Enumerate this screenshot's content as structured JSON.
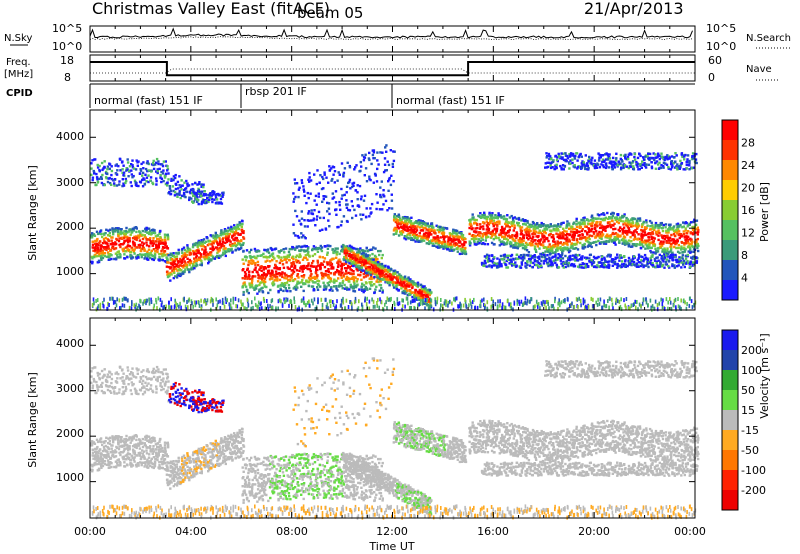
{
  "header": {
    "title": "Christmas Valley East (fitACF)",
    "beam": "beam 05",
    "date": "21/Apr/2013"
  },
  "chart_data": [
    {
      "type": "line",
      "panel": "noise",
      "left_label": "N.Sky",
      "right_label": "N.Search",
      "yticks_left": [
        "10^5",
        "10^0"
      ],
      "yticks_right": [
        "10^5",
        "10^0"
      ],
      "xlim": [
        "00:00",
        "24:00"
      ]
    },
    {
      "type": "line",
      "panel": "frequency",
      "left_label": "Freq. [MHz]",
      "right_label": "Nave",
      "yticks_left": [
        "18",
        "8"
      ],
      "yticks_right": [
        "60",
        "0"
      ],
      "series": [
        {
          "name": "Freq",
          "x_hours": [
            0,
            3.05,
            3.05,
            15.0,
            15.0,
            24
          ],
          "values": [
            15.3,
            15.3,
            10.2,
            10.2,
            15.3,
            15.3
          ]
        }
      ]
    },
    {
      "type": "table",
      "panel": "cpid",
      "label": "CPID",
      "segments": [
        {
          "start": 0,
          "end": 6.0,
          "text": "normal (fast)  151  IF"
        },
        {
          "start": 6.0,
          "end": 12.0,
          "text": "rbsp  201  IF"
        },
        {
          "start": 12.0,
          "end": 24,
          "text": "normal (fast)  151  IF"
        }
      ]
    },
    {
      "type": "heatmap",
      "panel": "power",
      "ylabel": "Slant Range [km]",
      "yticks": [
        1000,
        2000,
        3000,
        4000
      ],
      "ylim": [
        200,
        4600
      ],
      "colorbar_label": "Power [dB]",
      "colorbar_ticks": [
        "4",
        "8",
        "12",
        "16",
        "20",
        "24",
        "28"
      ]
    },
    {
      "type": "heatmap",
      "panel": "velocity",
      "ylabel": "Slant Range [km]",
      "yticks": [
        1000,
        2000,
        3000,
        4000
      ],
      "ylim": [
        200,
        4600
      ],
      "colorbar_label": "Velocity [m s^-1]",
      "colorbar_ticks": [
        "200",
        "100",
        "50",
        "15",
        "-15",
        "-50",
        "-100",
        "-200"
      ]
    }
  ],
  "xaxis": {
    "label": "Time UT",
    "ticks": [
      "00:00",
      "04:00",
      "08:00",
      "12:00",
      "16:00",
      "20:00",
      "00:00"
    ]
  },
  "colors": {
    "power_scale": [
      "#1a1aff",
      "#2255bb",
      "#3a9a7a",
      "#55c060",
      "#88cc33",
      "#ffcc00",
      "#ff8800",
      "#ff3300",
      "#ff0000"
    ],
    "velocity_scale": [
      "#1a1aee",
      "#2244aa",
      "#33aa33",
      "#66dd44",
      "#bbbbbb",
      "#ffaa22",
      "#ff7700",
      "#ff2200",
      "#ee0000"
    ]
  }
}
